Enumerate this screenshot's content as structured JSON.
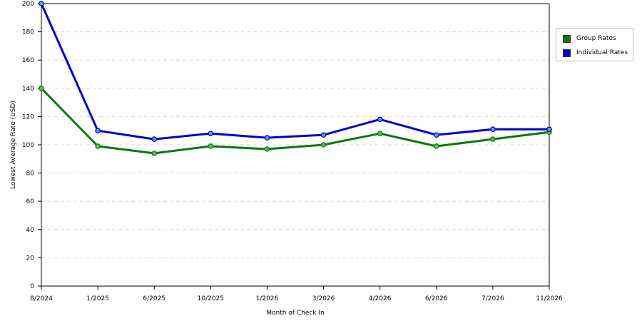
{
  "chart_data": {
    "type": "line",
    "xlabel": "Month of Check In",
    "ylabel": "Lowest Average Rate (USD)",
    "ylim": [
      0,
      200
    ],
    "y_ticks": [
      0,
      20,
      40,
      60,
      80,
      100,
      120,
      140,
      160,
      180,
      200
    ],
    "categories": [
      "8/2024",
      "1/2025",
      "6/2025",
      "10/2025",
      "1/2026",
      "3/2026",
      "4/2026",
      "6/2026",
      "7/2026",
      "11/2026"
    ],
    "grid": true,
    "legend_position": "right",
    "series": [
      {
        "name": "Group Rates",
        "color": "#0a7a0a",
        "marker_color": "#5cb85c",
        "values": [
          140,
          99,
          94,
          99,
          97,
          100,
          108,
          99,
          104,
          109
        ]
      },
      {
        "name": "Individual Rates",
        "color": "#0000cc",
        "marker_color": "#5b9bd5",
        "values": [
          200,
          110,
          104,
          108,
          105,
          107,
          118,
          107,
          111,
          111
        ]
      }
    ]
  }
}
